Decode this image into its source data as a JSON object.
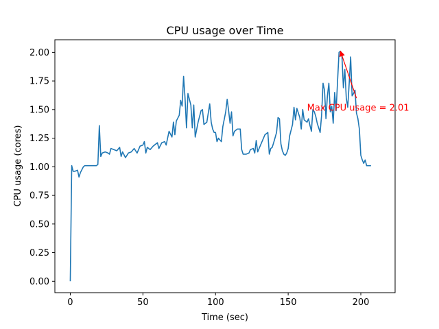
{
  "chart_data": {
    "type": "line",
    "title": "CPU usage over Time",
    "xlabel": "Time (sec)",
    "ylabel": "CPU usage (cores)",
    "xlim": [
      -10.6,
      223.6
    ],
    "ylim": [
      -0.1,
      2.11
    ],
    "xticks": [
      0,
      50,
      100,
      150,
      200
    ],
    "xtick_labels": [
      "0",
      "50",
      "100",
      "150",
      "200"
    ],
    "yticks": [
      0,
      0.25,
      0.5,
      0.75,
      1.0,
      1.25,
      1.5,
      1.75,
      2.0
    ],
    "ytick_labels": [
      "0.00",
      "0.25",
      "0.50",
      "0.75",
      "1.00",
      "1.25",
      "1.50",
      "1.75",
      "2.00"
    ],
    "grid": false,
    "series": [
      {
        "color": "#1f77b4",
        "points": [
          [
            0,
            0.0
          ],
          [
            1,
            1.01
          ],
          [
            2,
            0.96
          ],
          [
            3,
            0.96
          ],
          [
            5,
            0.97
          ],
          [
            6,
            0.91
          ],
          [
            7,
            0.95
          ],
          [
            9,
            1.0
          ],
          [
            10,
            1.01
          ],
          [
            12,
            1.01
          ],
          [
            15,
            1.01
          ],
          [
            17,
            1.01
          ],
          [
            18,
            1.01
          ],
          [
            19,
            1.02
          ],
          [
            20,
            1.36
          ],
          [
            21,
            1.09
          ],
          [
            22,
            1.12
          ],
          [
            24,
            1.13
          ],
          [
            26,
            1.12
          ],
          [
            27,
            1.11
          ],
          [
            28,
            1.16
          ],
          [
            30,
            1.15
          ],
          [
            32,
            1.14
          ],
          [
            34,
            1.17
          ],
          [
            35,
            1.09
          ],
          [
            36,
            1.13
          ],
          [
            38,
            1.08
          ],
          [
            40,
            1.12
          ],
          [
            42,
            1.13
          ],
          [
            44,
            1.16
          ],
          [
            46,
            1.12
          ],
          [
            48,
            1.18
          ],
          [
            50,
            1.19
          ],
          [
            51,
            1.22
          ],
          [
            52,
            1.12
          ],
          [
            53,
            1.17
          ],
          [
            55,
            1.15
          ],
          [
            57,
            1.18
          ],
          [
            59,
            1.2
          ],
          [
            60,
            1.21
          ],
          [
            61,
            1.16
          ],
          [
            63,
            1.21
          ],
          [
            65,
            1.22
          ],
          [
            66,
            1.19
          ],
          [
            68,
            1.31
          ],
          [
            70,
            1.26
          ],
          [
            71,
            1.39
          ],
          [
            72,
            1.28
          ],
          [
            73,
            1.4
          ],
          [
            75,
            1.45
          ],
          [
            76,
            1.58
          ],
          [
            77,
            1.53
          ],
          [
            78,
            1.79
          ],
          [
            79,
            1.6
          ],
          [
            80,
            1.34
          ],
          [
            81,
            1.64
          ],
          [
            83,
            1.54
          ],
          [
            84,
            1.34
          ],
          [
            85,
            1.54
          ],
          [
            86,
            1.26
          ],
          [
            88,
            1.39
          ],
          [
            90,
            1.49
          ],
          [
            91,
            1.5
          ],
          [
            92,
            1.37
          ],
          [
            94,
            1.39
          ],
          [
            96,
            1.55
          ],
          [
            97,
            1.39
          ],
          [
            98,
            1.33
          ],
          [
            99,
            1.3
          ],
          [
            100,
            1.3
          ],
          [
            101,
            1.22
          ],
          [
            102,
            1.25
          ],
          [
            104,
            1.22
          ],
          [
            105,
            1.35
          ],
          [
            107,
            1.48
          ],
          [
            108,
            1.59
          ],
          [
            109,
            1.49
          ],
          [
            110,
            1.38
          ],
          [
            111,
            1.48
          ],
          [
            112,
            1.27
          ],
          [
            113,
            1.31
          ],
          [
            115,
            1.33
          ],
          [
            117,
            1.33
          ],
          [
            118,
            1.15
          ],
          [
            119,
            1.11
          ],
          [
            121,
            1.11
          ],
          [
            123,
            1.12
          ],
          [
            124,
            1.15
          ],
          [
            126,
            1.16
          ],
          [
            127,
            1.12
          ],
          [
            128,
            1.23
          ],
          [
            129,
            1.13
          ],
          [
            130,
            1.16
          ],
          [
            132,
            1.22
          ],
          [
            134,
            1.28
          ],
          [
            136,
            1.3
          ],
          [
            137,
            1.11
          ],
          [
            138,
            1.16
          ],
          [
            139,
            1.17
          ],
          [
            140,
            1.21
          ],
          [
            142,
            1.3
          ],
          [
            143,
            1.43
          ],
          [
            144,
            1.42
          ],
          [
            145,
            1.2
          ],
          [
            146,
            1.14
          ],
          [
            147,
            1.11
          ],
          [
            148,
            1.1
          ],
          [
            149,
            1.12
          ],
          [
            150,
            1.16
          ],
          [
            151,
            1.27
          ],
          [
            153,
            1.37
          ],
          [
            154,
            1.52
          ],
          [
            155,
            1.41
          ],
          [
            156,
            1.51
          ],
          [
            157,
            1.47
          ],
          [
            158,
            1.43
          ],
          [
            159,
            1.33
          ],
          [
            160,
            1.5
          ],
          [
            161,
            1.41
          ],
          [
            163,
            1.39
          ],
          [
            164,
            1.42
          ],
          [
            165,
            1.36
          ],
          [
            166,
            1.31
          ],
          [
            167,
            1.5
          ],
          [
            168,
            1.48
          ],
          [
            169,
            1.44
          ],
          [
            170,
            1.38
          ],
          [
            172,
            1.3
          ],
          [
            173,
            1.45
          ],
          [
            174,
            1.73
          ],
          [
            175,
            1.67
          ],
          [
            176,
            1.42
          ],
          [
            177,
            1.62
          ],
          [
            178,
            1.73
          ],
          [
            179,
            1.48
          ],
          [
            180,
            1.53
          ],
          [
            181,
            1.38
          ],
          [
            182,
            1.65
          ],
          [
            183,
            1.49
          ],
          [
            184,
            1.75
          ],
          [
            185,
            2.0
          ],
          [
            186,
            2.01
          ],
          [
            187,
            1.97
          ],
          [
            188,
            1.69
          ],
          [
            189,
            1.85
          ],
          [
            190,
            1.6
          ],
          [
            191,
            1.52
          ],
          [
            192,
            1.73
          ],
          [
            193,
            1.96
          ],
          [
            194,
            1.62
          ],
          [
            195,
            1.64
          ],
          [
            196,
            1.67
          ],
          [
            197,
            1.47
          ],
          [
            198,
            1.42
          ],
          [
            199,
            1.33
          ],
          [
            200,
            1.1
          ],
          [
            201,
            1.06
          ],
          [
            202,
            1.03
          ],
          [
            203,
            1.06
          ],
          [
            204,
            1.01
          ],
          [
            205,
            1.01
          ],
          [
            207,
            1.01
          ]
        ]
      }
    ],
    "annotations": [
      {
        "text": "Max CPU usage = 2.01",
        "xy": [
          186,
          2.01
        ],
        "xytext": [
          163,
          1.49
        ],
        "arrow_from": [
          197,
          1.6
        ],
        "color": "#ff0000"
      }
    ]
  }
}
